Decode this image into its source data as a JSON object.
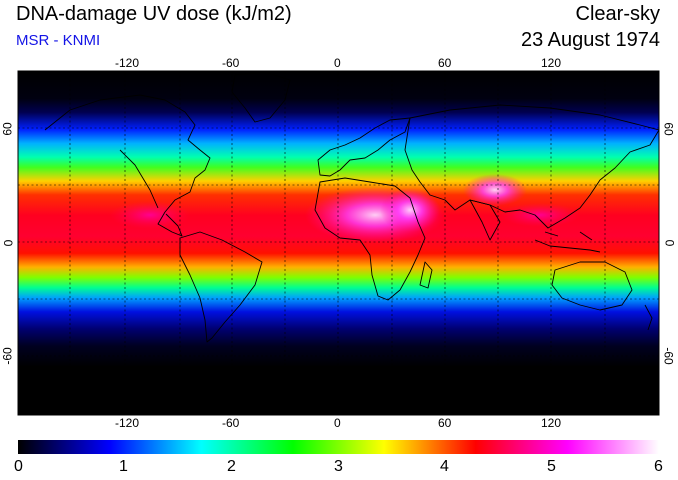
{
  "header": {
    "title": "DNA-damage UV dose (kJ/m2)",
    "source": "MSR - KNMI",
    "sky_condition": "Clear-sky",
    "date": "23 August 1974"
  },
  "map": {
    "projection": "equirectangular",
    "lon_range": [
      -180,
      180
    ],
    "lat_range": [
      -90,
      90
    ],
    "lon_ticks": [
      "-120",
      "-60",
      "0",
      "60",
      "120"
    ],
    "lat_ticks_left": [
      "60",
      "0",
      "-60"
    ],
    "lat_ticks_right": [
      "60",
      "0",
      "-60"
    ],
    "grid": "dotted, 30 degree spacing",
    "field": "UV dose, low near poles, peak in northern subtropics over North Africa, Arabia and Tibet"
  },
  "colorbar": {
    "min": 0,
    "max": 6,
    "labels": [
      "0",
      "1",
      "2",
      "3",
      "4",
      "5",
      "6"
    ],
    "colors": [
      "#000000",
      "#0000ff",
      "#00ffff",
      "#00ff00",
      "#ffff00",
      "#ff0000",
      "#ff00ff",
      "#ffffff"
    ]
  }
}
